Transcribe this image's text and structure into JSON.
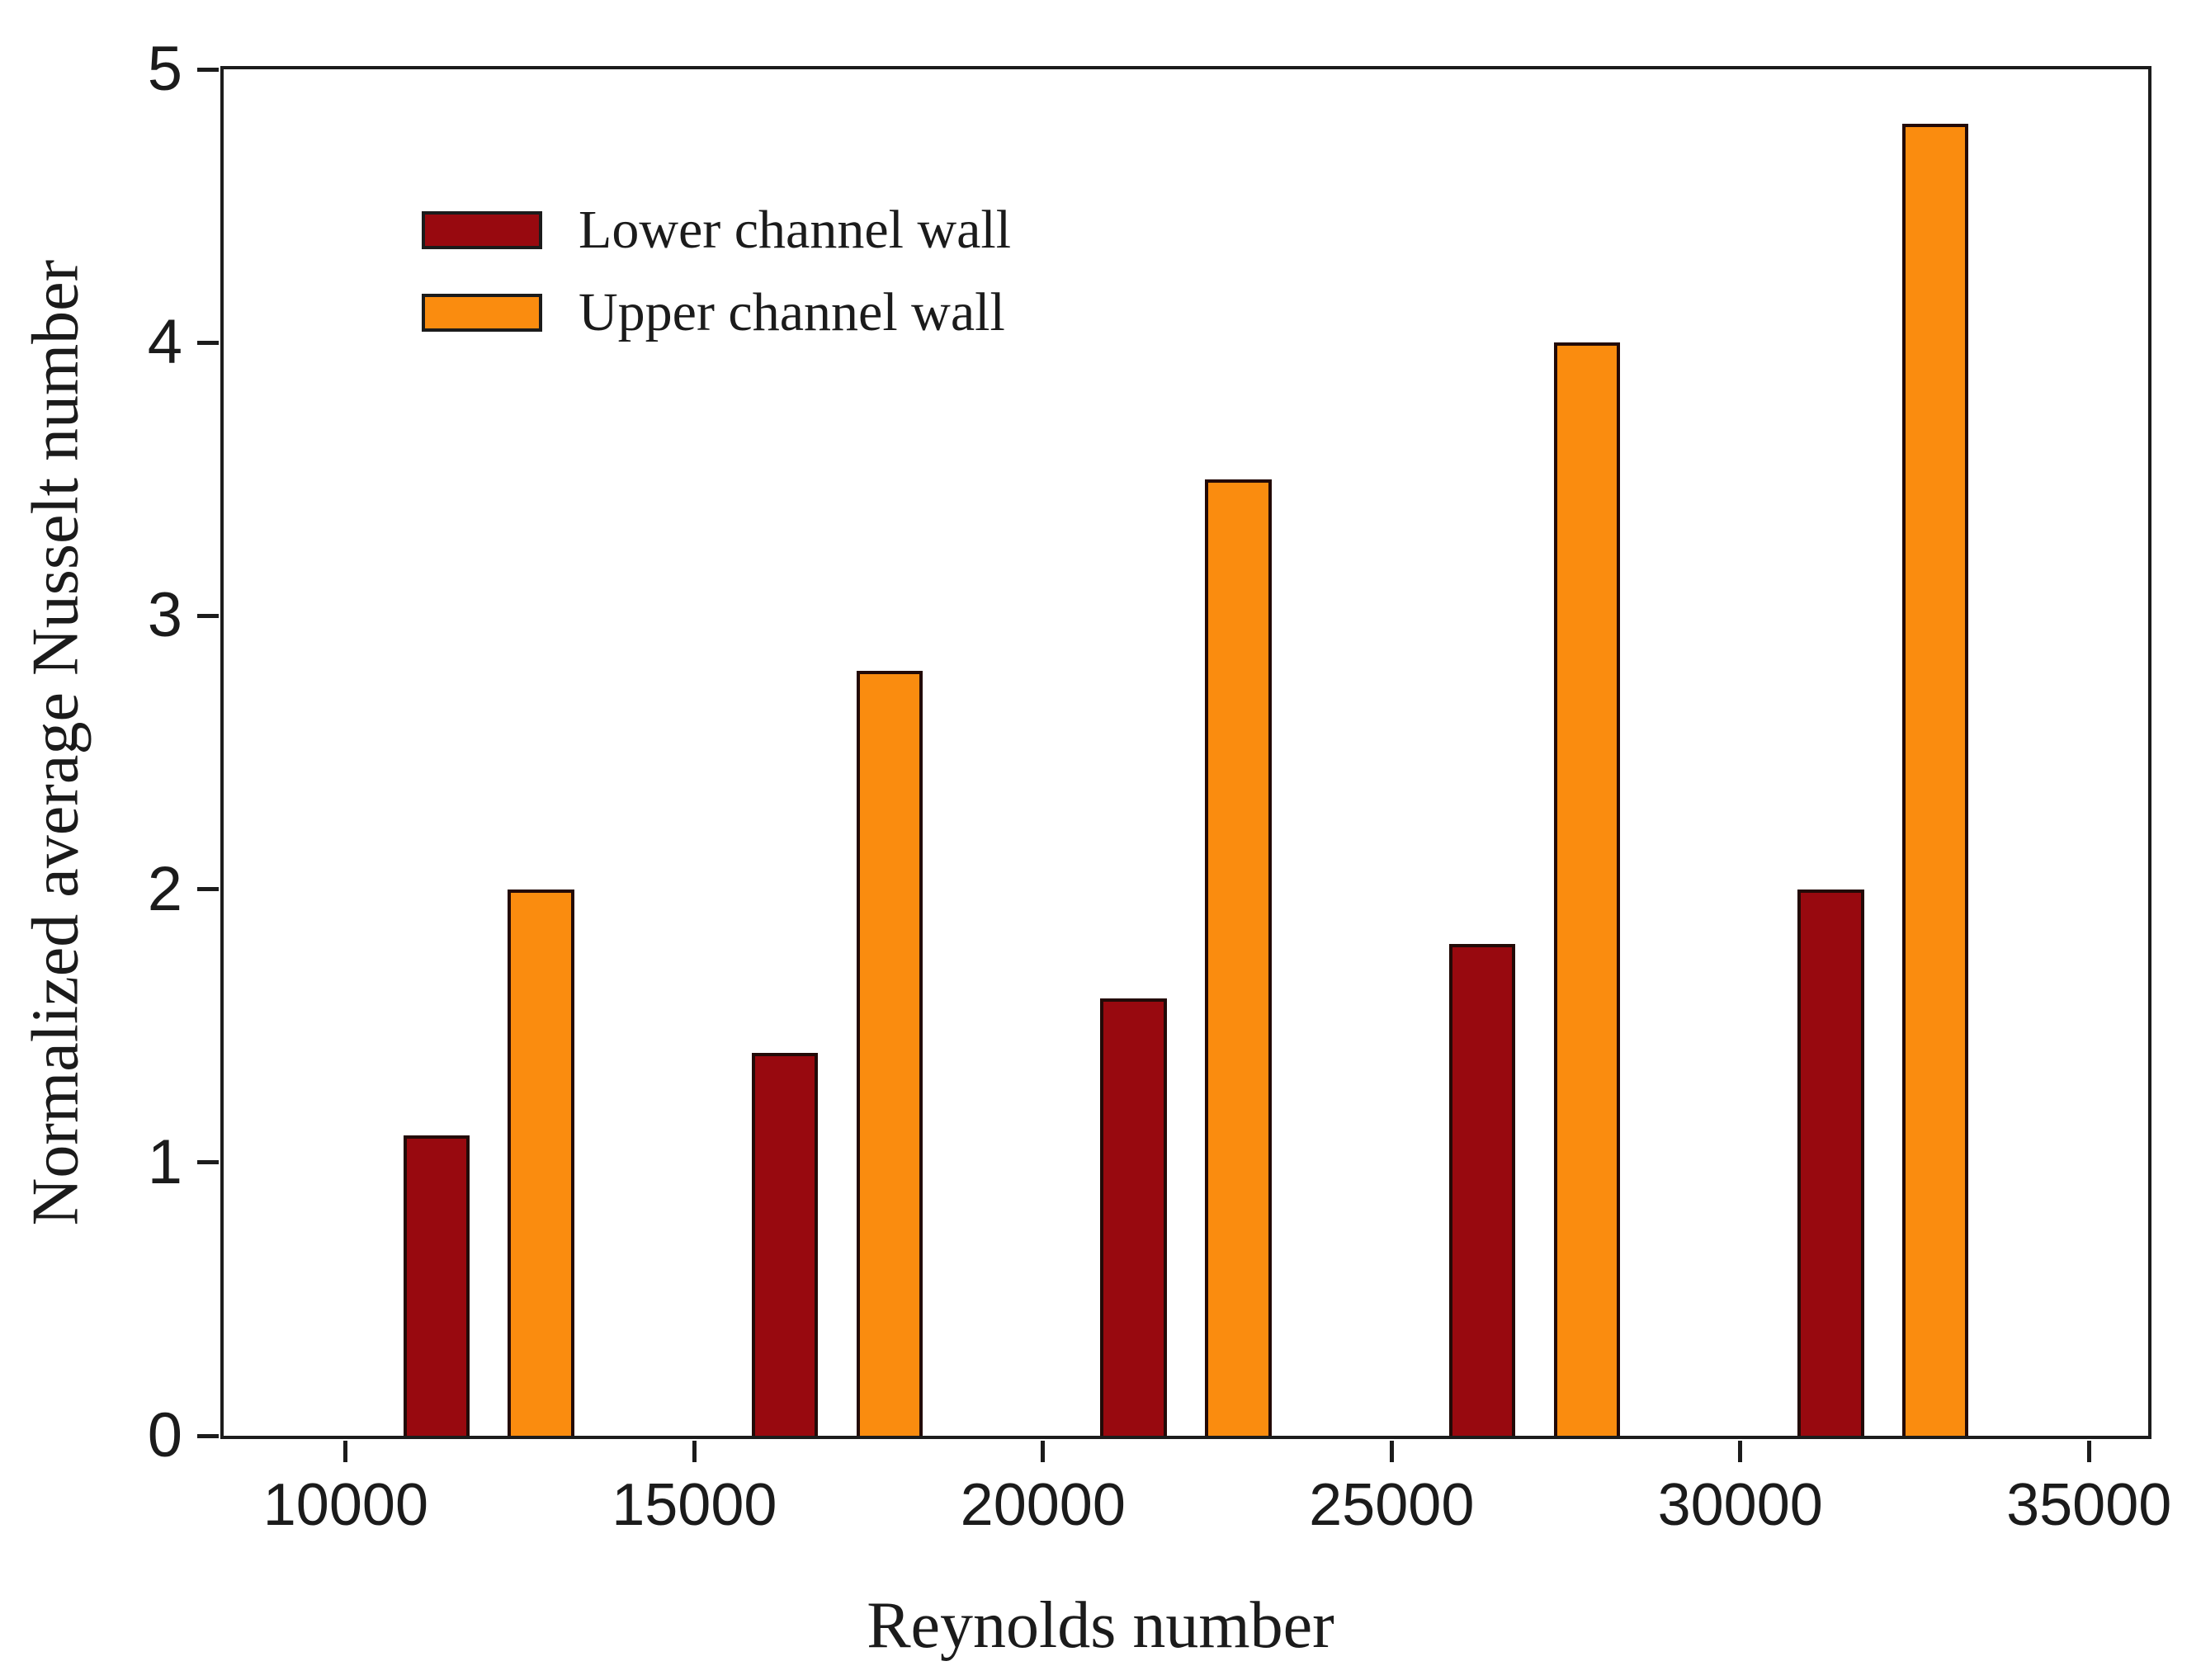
{
  "figure": {
    "background": "#ffffff",
    "text_color": "#1b1b1b",
    "frame_color": "#1c1c1c"
  },
  "chart_data": {
    "type": "bar",
    "title": "",
    "xlabel": "Reynolds number",
    "ylabel": "Normalized average Nusselt number",
    "xlim": [
      8250,
      35850
    ],
    "ylim": [
      0,
      5
    ],
    "x_tick_labels": [
      "10000",
      "15000",
      "20000",
      "25000",
      "30000",
      "35000"
    ],
    "x_tick_values": [
      10000,
      15000,
      20000,
      25000,
      30000,
      35000
    ],
    "y_tick_labels": [
      "0",
      "1",
      "2",
      "3",
      "4",
      "5"
    ],
    "y_tick_values": [
      0,
      1,
      2,
      3,
      4,
      5
    ],
    "grid": false,
    "legend_position": "upper left inside",
    "bar_width_x_units": 950,
    "series": [
      {
        "name": "Lower channel wall",
        "fill_color": "#98090F",
        "edge_color": "#230a07",
        "x": [
          11300,
          16300,
          21300,
          26300,
          31300
        ],
        "values": [
          1.1,
          1.4,
          1.6,
          1.8,
          2.0
        ]
      },
      {
        "name": "Upper channel wall",
        "fill_color": "#FA8C0F",
        "edge_color": "#230a07",
        "x": [
          12800,
          17800,
          22800,
          27800,
          32800
        ],
        "values": [
          2.0,
          2.8,
          3.5,
          4.0,
          4.8
        ]
      }
    ]
  }
}
